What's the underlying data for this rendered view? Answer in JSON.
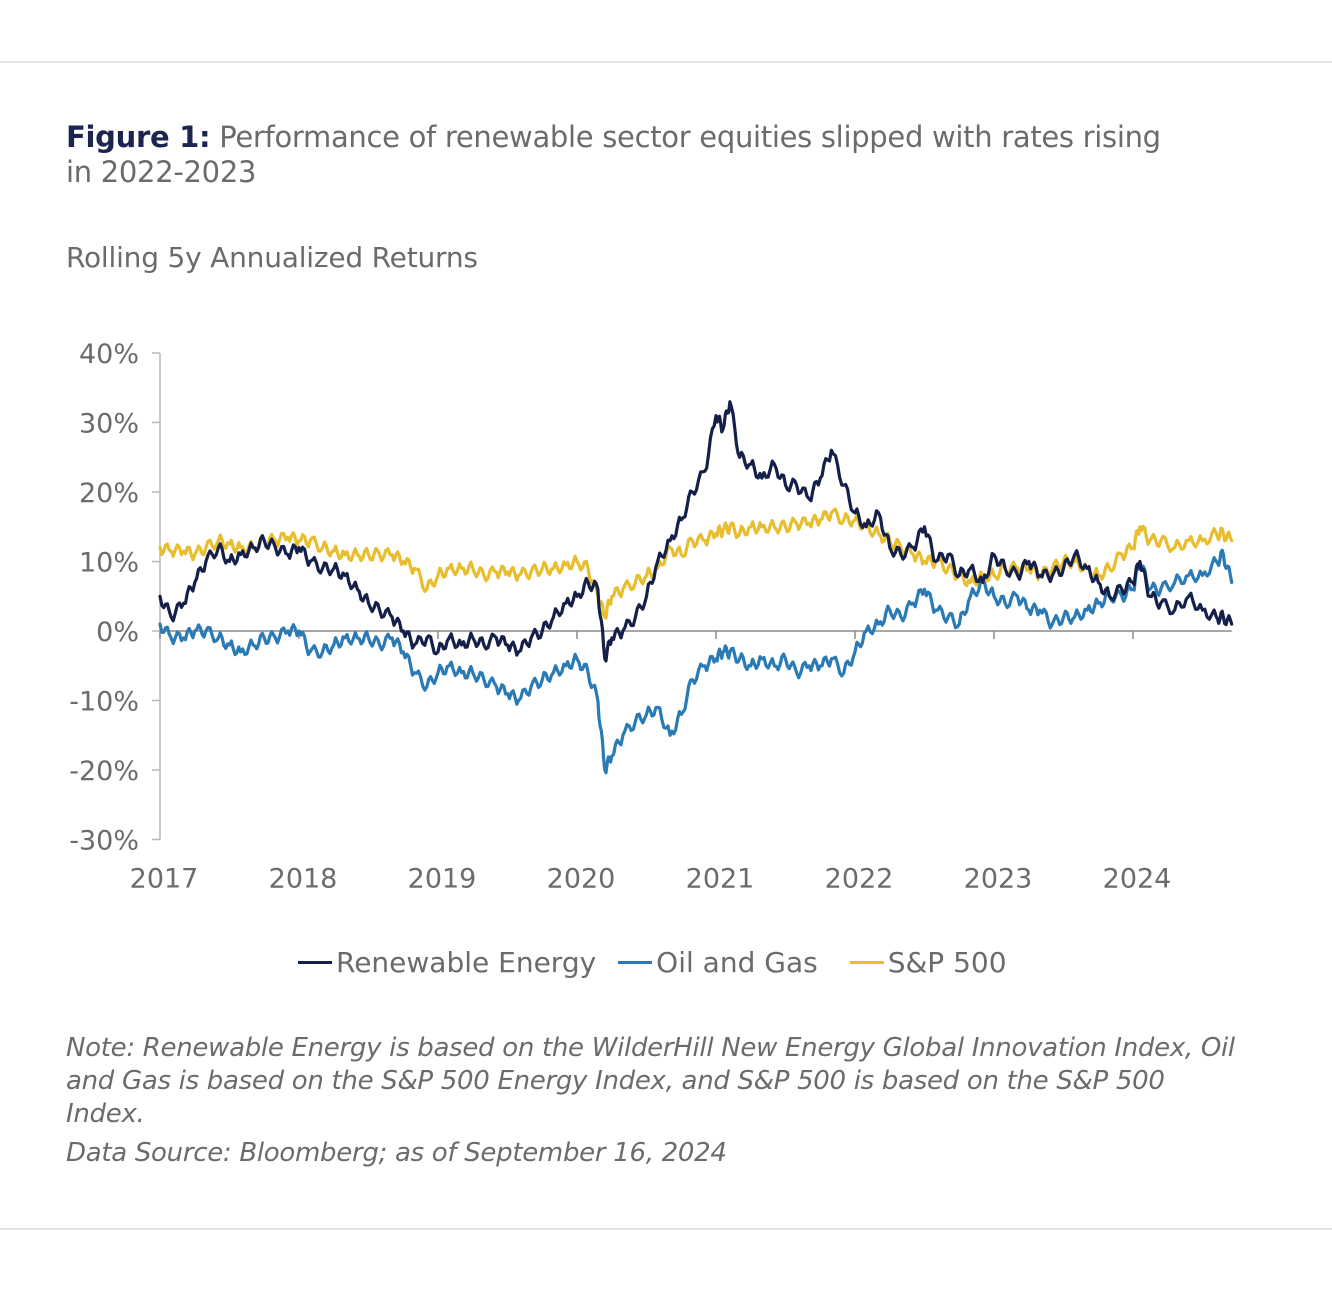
{
  "figure": {
    "label": "Figure 1:",
    "title": " Performance of renewable sector equities slipped with rates rising in 2022-2023",
    "subtitle": "Rolling 5y Annualized Returns"
  },
  "legend": [
    {
      "name": "Renewable Energy",
      "color": "#14204a"
    },
    {
      "name": "Oil and Gas",
      "color": "#2a7ab5"
    },
    {
      "name": "S&P 500",
      "color": "#e8bd2e"
    }
  ],
  "notes": {
    "note": "Note: Renewable Energy is based on the WilderHill New Energy Global Innovation Index, Oil and Gas is based on the S&P 500 Energy Index, and S&P 500 is based on the S&P 500 Index.",
    "source": "Data Source: Bloomberg; as of September 16, 2024"
  },
  "chart_data": {
    "type": "line",
    "title": "Rolling 5y Annualized Returns",
    "xlabel": "",
    "ylabel": "",
    "ylim": [
      -30,
      40
    ],
    "xlim": [
      2017.0,
      2024.71
    ],
    "y_ticks": [
      40,
      30,
      20,
      10,
      0,
      -10,
      -20,
      -30
    ],
    "y_tick_labels": [
      "40%",
      "30%",
      "20%",
      "10%",
      "0%",
      "-10%",
      "-20%",
      "-30%"
    ],
    "x_ticks": [
      2017,
      2018,
      2019,
      2020,
      2021,
      2022,
      2023,
      2024
    ],
    "x_tick_labels": [
      "2017",
      "2018",
      "2019",
      "2020",
      "2021",
      "2022",
      "2023",
      "2024"
    ],
    "grid": false,
    "legend_position": "bottom",
    "x": [
      2017.0,
      2017.08,
      2017.17,
      2017.25,
      2017.33,
      2017.42,
      2017.5,
      2017.58,
      2017.67,
      2017.75,
      2017.83,
      2017.92,
      2018.0,
      2018.08,
      2018.17,
      2018.25,
      2018.33,
      2018.42,
      2018.5,
      2018.58,
      2018.67,
      2018.75,
      2018.83,
      2018.92,
      2019.0,
      2019.08,
      2019.17,
      2019.25,
      2019.33,
      2019.42,
      2019.5,
      2019.58,
      2019.67,
      2019.75,
      2019.83,
      2019.92,
      2020.0,
      2020.08,
      2020.15,
      2020.2,
      2020.25,
      2020.33,
      2020.42,
      2020.5,
      2020.58,
      2020.67,
      2020.75,
      2020.83,
      2020.92,
      2021.0,
      2021.05,
      2021.1,
      2021.17,
      2021.25,
      2021.33,
      2021.42,
      2021.5,
      2021.58,
      2021.67,
      2021.75,
      2021.83,
      2021.92,
      2022.0,
      2022.08,
      2022.17,
      2022.25,
      2022.33,
      2022.42,
      2022.5,
      2022.58,
      2022.67,
      2022.75,
      2022.83,
      2022.92,
      2023.0,
      2023.08,
      2023.17,
      2023.25,
      2023.33,
      2023.42,
      2023.5,
      2023.58,
      2023.67,
      2023.75,
      2023.83,
      2023.92,
      2024.0,
      2024.05,
      2024.12,
      2024.2,
      2024.3,
      2024.4,
      2024.5,
      2024.6,
      2024.65,
      2024.71
    ],
    "series": [
      {
        "name": "Renewable Energy",
        "color": "#14204a",
        "values": [
          5,
          2,
          4,
          7,
          10,
          12,
          10,
          11,
          12,
          13,
          12,
          11,
          12,
          10,
          9,
          9,
          8,
          6,
          4,
          3,
          2,
          0,
          -2,
          -1,
          -3,
          -1,
          -2,
          -1,
          -2,
          -1,
          -2,
          -3,
          -1,
          0,
          2,
          4,
          5,
          7,
          6,
          -4,
          -1,
          0,
          2,
          5,
          10,
          13,
          16,
          20,
          23,
          31,
          29,
          33,
          25,
          24,
          22,
          24,
          21,
          21,
          19,
          22,
          26,
          21,
          17,
          15,
          17,
          12,
          11,
          12,
          15,
          10,
          11,
          8,
          9,
          7,
          11,
          9,
          8,
          10,
          8,
          8,
          9,
          11,
          9,
          7,
          5,
          6,
          7,
          10,
          5,
          4,
          3,
          5,
          3,
          2,
          2,
          1
        ]
      },
      {
        "name": "Oil and Gas",
        "color": "#2a7ab5",
        "values": [
          1,
          -1,
          -1,
          0,
          0,
          -1,
          -2,
          -3,
          -2,
          -1,
          -1,
          0,
          0,
          -3,
          -3,
          -2,
          -1,
          -1,
          -1,
          -2,
          -1,
          -3,
          -6,
          -8,
          -6,
          -5,
          -6,
          -6,
          -7,
          -8,
          -9,
          -10,
          -8,
          -7,
          -6,
          -5,
          -4,
          -6,
          -10,
          -20,
          -18,
          -15,
          -13,
          -12,
          -11,
          -15,
          -12,
          -7,
          -5,
          -4,
          -3,
          -3,
          -4,
          -5,
          -4,
          -5,
          -4,
          -6,
          -5,
          -5,
          -4,
          -6,
          -3,
          0,
          1,
          3,
          2,
          4,
          6,
          3,
          2,
          1,
          5,
          7,
          5,
          4,
          5,
          3,
          3,
          1,
          2,
          2,
          3,
          4,
          5,
          5,
          6,
          10,
          6,
          6,
          7,
          8,
          8,
          10,
          11,
          7
        ]
      },
      {
        "name": "S&P 500",
        "color": "#e8bd2e",
        "values": [
          12,
          11.5,
          11.5,
          11,
          12,
          13,
          12.5,
          12,
          12,
          13,
          13,
          13.5,
          13,
          13,
          12,
          11.5,
          11,
          11,
          11,
          11,
          11,
          10,
          9,
          6,
          8,
          9,
          9,
          9,
          8,
          8.5,
          8.5,
          8,
          8.5,
          9,
          9,
          9.5,
          10,
          9,
          5,
          2,
          5,
          6,
          7,
          8,
          9,
          12,
          11,
          13,
          13,
          14,
          14.5,
          15,
          14,
          15,
          15,
          15,
          15,
          15.5,
          15.5,
          16,
          17,
          16,
          16,
          15,
          14,
          13,
          12,
          11,
          10,
          10,
          9,
          8,
          7,
          8,
          8,
          9,
          9,
          9,
          8,
          9,
          10,
          10,
          9,
          8,
          9,
          11,
          12,
          15,
          13,
          13,
          12,
          13,
          13,
          14,
          14,
          13
        ]
      }
    ]
  }
}
